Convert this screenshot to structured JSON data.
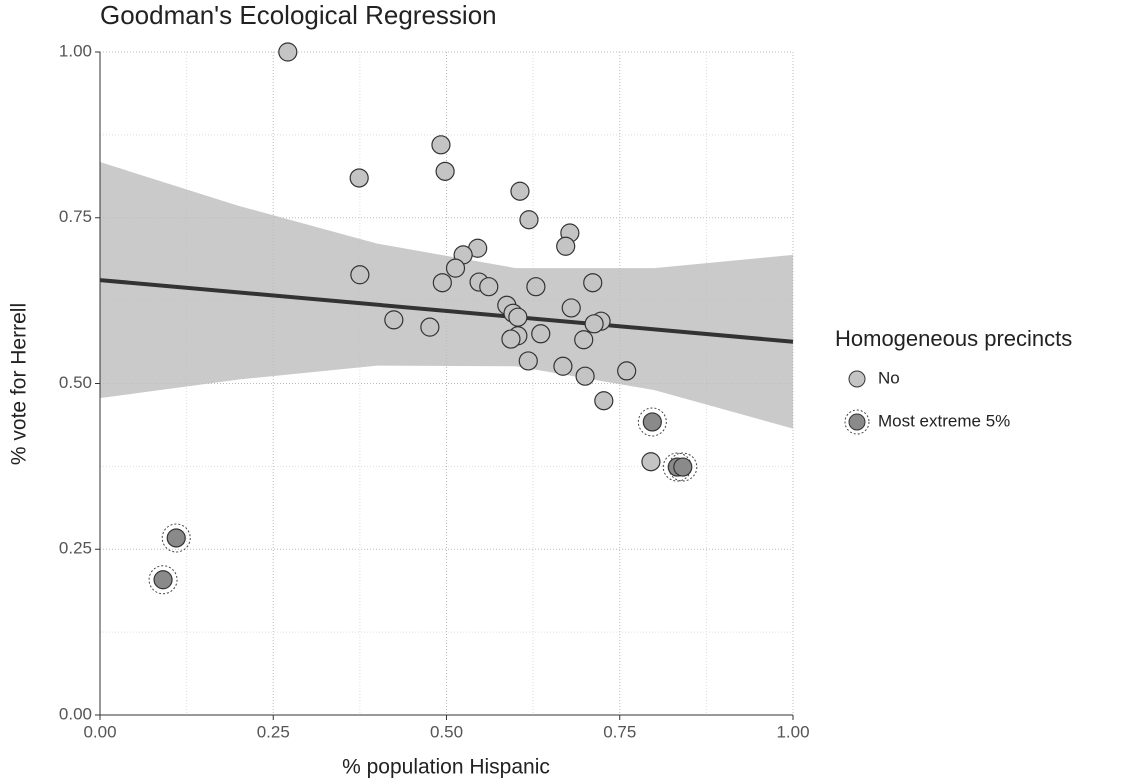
{
  "chart_data": {
    "type": "scatter",
    "title": "Goodman's Ecological Regression",
    "x_label": "% population Hispanic",
    "y_label": "% vote for Herrell",
    "legend_title": "Homogeneous precincts",
    "xlim": [
      0,
      1
    ],
    "ylim": [
      0,
      1
    ],
    "xticks": [
      {
        "value": 0,
        "label": "0.00"
      },
      {
        "value": 0.25,
        "label": "0.25"
      },
      {
        "value": 0.5,
        "label": "0.50"
      },
      {
        "value": 0.75,
        "label": "0.75"
      },
      {
        "value": 1,
        "label": "1.00"
      }
    ],
    "yticks": [
      {
        "value": 0,
        "label": "0.00"
      },
      {
        "value": 0.25,
        "label": "0.25"
      },
      {
        "value": 0.5,
        "label": "0.50"
      },
      {
        "value": 0.75,
        "label": "0.75"
      },
      {
        "value": 1,
        "label": "1.00"
      }
    ],
    "x_minor_ticks": [
      0.125,
      0.375,
      0.625,
      0.875
    ],
    "y_minor_ticks": [
      0.125,
      0.375,
      0.625,
      0.875
    ],
    "grid": true,
    "series": [
      {
        "name": "No",
        "color": "#c4c4c4",
        "x": [
          0.271,
          0.492,
          0.498,
          0.374,
          0.606,
          0.619,
          0.678,
          0.672,
          0.545,
          0.524,
          0.513,
          0.375,
          0.494,
          0.547,
          0.561,
          0.629,
          0.711,
          0.587,
          0.68,
          0.596,
          0.603,
          0.723,
          0.424,
          0.713,
          0.476,
          0.636,
          0.603,
          0.593,
          0.698,
          0.618,
          0.668,
          0.76,
          0.7,
          0.727,
          0.795
        ],
        "y": [
          1.0,
          0.86,
          0.82,
          0.81,
          0.79,
          0.747,
          0.727,
          0.707,
          0.704,
          0.694,
          0.674,
          0.664,
          0.652,
          0.653,
          0.646,
          0.646,
          0.652,
          0.618,
          0.614,
          0.606,
          0.6,
          0.594,
          0.596,
          0.59,
          0.585,
          0.575,
          0.572,
          0.567,
          0.566,
          0.534,
          0.526,
          0.519,
          0.511,
          0.474,
          0.382
        ]
      },
      {
        "name": "Most extreme 5%",
        "color": "#8a8a8a",
        "x": [
          0.797,
          0.833,
          0.841,
          0.11,
          0.091
        ],
        "y": [
          0.442,
          0.374,
          0.374,
          0.267,
          0.204
        ]
      }
    ],
    "fit": {
      "color": "#333333",
      "x": [
        0,
        1
      ],
      "y": [
        0.656,
        0.563
      ]
    },
    "band": {
      "color": "#bdbdbd",
      "x": [
        0,
        0.2,
        0.4,
        0.6,
        0.8,
        1
      ],
      "lower": [
        0.478,
        0.506,
        0.527,
        0.526,
        0.49,
        0.432
      ],
      "upper": [
        0.834,
        0.768,
        0.711,
        0.674,
        0.674,
        0.694
      ]
    }
  }
}
